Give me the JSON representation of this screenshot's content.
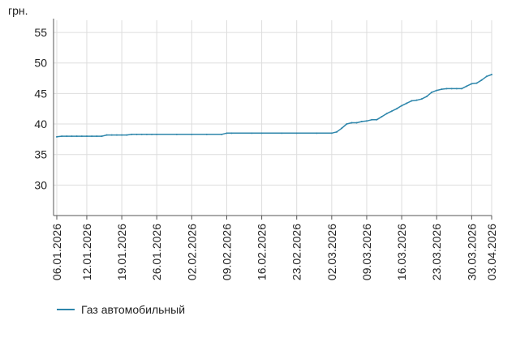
{
  "chart_data": {
    "type": "line",
    "ylabel": "грн.",
    "ylim": [
      25,
      57
    ],
    "yticks": [
      30,
      35,
      40,
      45,
      50,
      55
    ],
    "grid": true,
    "x_tick_labels": [
      "06.01.2026",
      "12.01.2026",
      "19.01.2026",
      "26.01.2026",
      "02.02.2026",
      "09.02.2026",
      "16.02.2026",
      "23.02.2026",
      "02.03.2026",
      "09.03.2026",
      "16.03.2026",
      "23.03.2026",
      "30.03.2026",
      "03.04.2026"
    ],
    "x_tick_dates": [
      "2026-01-06",
      "2026-01-12",
      "2026-01-19",
      "2026-01-26",
      "2026-02-02",
      "2026-02-09",
      "2026-02-16",
      "2026-02-23",
      "2026-03-02",
      "2026-03-09",
      "2026-03-16",
      "2026-03-23",
      "2026-03-30",
      "2026-04-03"
    ],
    "legend_position": "bottom-left",
    "series": [
      {
        "name": "Газ автомобильный",
        "color": "#2E86AB",
        "points": [
          [
            "2026-01-06",
            37.9
          ],
          [
            "2026-01-07",
            38.0
          ],
          [
            "2026-01-08",
            38.0
          ],
          [
            "2026-01-09",
            38.0
          ],
          [
            "2026-01-10",
            38.0
          ],
          [
            "2026-01-11",
            38.0
          ],
          [
            "2026-01-12",
            38.0
          ],
          [
            "2026-01-13",
            38.0
          ],
          [
            "2026-01-14",
            38.0
          ],
          [
            "2026-01-15",
            38.0
          ],
          [
            "2026-01-16",
            38.2
          ],
          [
            "2026-01-17",
            38.2
          ],
          [
            "2026-01-18",
            38.2
          ],
          [
            "2026-01-19",
            38.2
          ],
          [
            "2026-01-20",
            38.2
          ],
          [
            "2026-01-21",
            38.3
          ],
          [
            "2026-01-22",
            38.3
          ],
          [
            "2026-01-23",
            38.3
          ],
          [
            "2026-01-24",
            38.3
          ],
          [
            "2026-01-25",
            38.3
          ],
          [
            "2026-01-26",
            38.3
          ],
          [
            "2026-01-30",
            38.3
          ],
          [
            "2026-02-02",
            38.3
          ],
          [
            "2026-02-05",
            38.3
          ],
          [
            "2026-02-08",
            38.3
          ],
          [
            "2026-02-09",
            38.5
          ],
          [
            "2026-02-10",
            38.5
          ],
          [
            "2026-02-14",
            38.5
          ],
          [
            "2026-02-16",
            38.5
          ],
          [
            "2026-02-20",
            38.5
          ],
          [
            "2026-02-23",
            38.5
          ],
          [
            "2026-02-27",
            38.5
          ],
          [
            "2026-03-02",
            38.5
          ],
          [
            "2026-03-03",
            38.7
          ],
          [
            "2026-03-04",
            39.3
          ],
          [
            "2026-03-05",
            40.0
          ],
          [
            "2026-03-06",
            40.2
          ],
          [
            "2026-03-07",
            40.2
          ],
          [
            "2026-03-08",
            40.4
          ],
          [
            "2026-03-09",
            40.5
          ],
          [
            "2026-03-10",
            40.7
          ],
          [
            "2026-03-11",
            40.7
          ],
          [
            "2026-03-12",
            41.2
          ],
          [
            "2026-03-13",
            41.7
          ],
          [
            "2026-03-14",
            42.1
          ],
          [
            "2026-03-15",
            42.5
          ],
          [
            "2026-03-16",
            43.0
          ],
          [
            "2026-03-17",
            43.4
          ],
          [
            "2026-03-18",
            43.8
          ],
          [
            "2026-03-19",
            43.9
          ],
          [
            "2026-03-20",
            44.1
          ],
          [
            "2026-03-21",
            44.5
          ],
          [
            "2026-03-22",
            45.2
          ],
          [
            "2026-03-23",
            45.5
          ],
          [
            "2026-03-24",
            45.7
          ],
          [
            "2026-03-25",
            45.8
          ],
          [
            "2026-03-26",
            45.8
          ],
          [
            "2026-03-27",
            45.8
          ],
          [
            "2026-03-28",
            45.8
          ],
          [
            "2026-03-29",
            46.2
          ],
          [
            "2026-03-30",
            46.6
          ],
          [
            "2026-03-31",
            46.7
          ],
          [
            "2026-04-01",
            47.2
          ],
          [
            "2026-04-02",
            47.8
          ],
          [
            "2026-04-03",
            48.1
          ]
        ]
      }
    ]
  }
}
